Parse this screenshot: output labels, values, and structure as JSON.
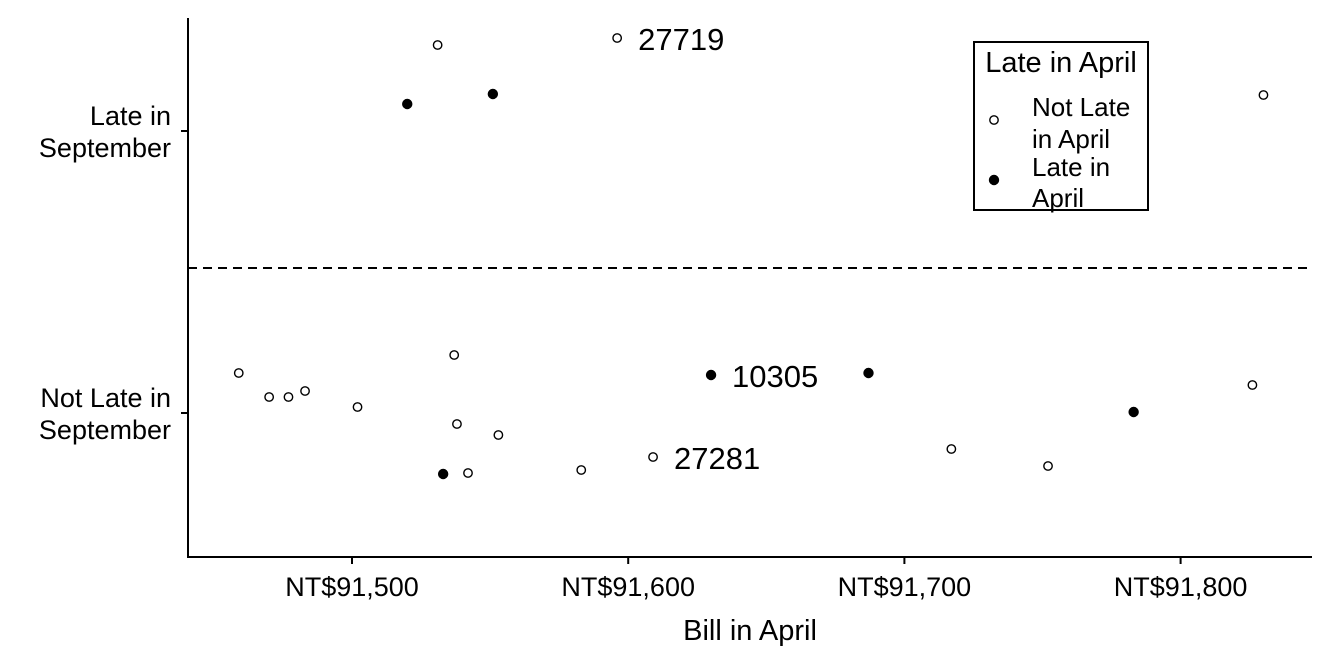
{
  "chart_data": {
    "type": "scatter",
    "title": "",
    "xlabel": "Bill in April",
    "ylabel": "",
    "xlim": [
      91441,
      91848
    ],
    "x_ticks": [
      {
        "value": 91500,
        "label": "NT$91,500"
      },
      {
        "value": 91600,
        "label": "NT$91,600"
      },
      {
        "value": 91700,
        "label": "NT$91,700"
      },
      {
        "value": 91800,
        "label": "NT$91,800"
      }
    ],
    "y_categories": [
      {
        "key": "late",
        "lines": [
          "Late in",
          "September"
        ]
      },
      {
        "key": "not_late",
        "lines": [
          "Not Late in",
          "September"
        ]
      }
    ],
    "grid": false,
    "divider": "dashed",
    "legend": {
      "title": "Late in April",
      "position": "top-right",
      "items": [
        {
          "key": "not_late_april",
          "lines": [
            "Not Late",
            "in April"
          ],
          "marker": "open-circle"
        },
        {
          "key": "late_april",
          "lines": [
            "Late in",
            "April"
          ],
          "marker": "filled-circle"
        }
      ]
    },
    "series": [
      {
        "key": "not_late_april",
        "points": [
          {
            "x": 91531,
            "y": "late",
            "jitter": 0.86
          },
          {
            "x": 91596,
            "y": "late",
            "jitter": 0.93,
            "label": "27719"
          },
          {
            "x": 91830,
            "y": "late",
            "jitter": 0.36
          },
          {
            "x": 91459,
            "y": "not_late",
            "jitter": 0.4
          },
          {
            "x": 91470,
            "y": "not_late",
            "jitter": 0.16
          },
          {
            "x": 91477,
            "y": "not_late",
            "jitter": 0.16
          },
          {
            "x": 91483,
            "y": "not_late",
            "jitter": 0.22
          },
          {
            "x": 91502,
            "y": "not_late",
            "jitter": 0.06
          },
          {
            "x": 91537,
            "y": "not_late",
            "jitter": 0.58
          },
          {
            "x": 91538,
            "y": "not_late",
            "jitter": -0.11
          },
          {
            "x": 91542,
            "y": "not_late",
            "jitter": -0.6
          },
          {
            "x": 91553,
            "y": "not_late",
            "jitter": -0.22
          },
          {
            "x": 91583,
            "y": "not_late",
            "jitter": -0.57
          },
          {
            "x": 91609,
            "y": "not_late",
            "jitter": -0.44,
            "label": "27281"
          },
          {
            "x": 91717,
            "y": "not_late",
            "jitter": -0.36
          },
          {
            "x": 91752,
            "y": "not_late",
            "jitter": -0.53
          },
          {
            "x": 91826,
            "y": "not_late",
            "jitter": 0.28
          }
        ]
      },
      {
        "key": "late_april",
        "points": [
          {
            "x": 91520,
            "y": "late",
            "jitter": 0.27
          },
          {
            "x": 91551,
            "y": "late",
            "jitter": 0.37
          },
          {
            "x": 91630,
            "y": "not_late",
            "jitter": 0.38,
            "label": "10305"
          },
          {
            "x": 91687,
            "y": "not_late",
            "jitter": 0.4
          },
          {
            "x": 91783,
            "y": "not_late",
            "jitter": 0.01
          },
          {
            "x": 91533,
            "y": "not_late",
            "jitter": -0.61
          }
        ]
      }
    ]
  }
}
